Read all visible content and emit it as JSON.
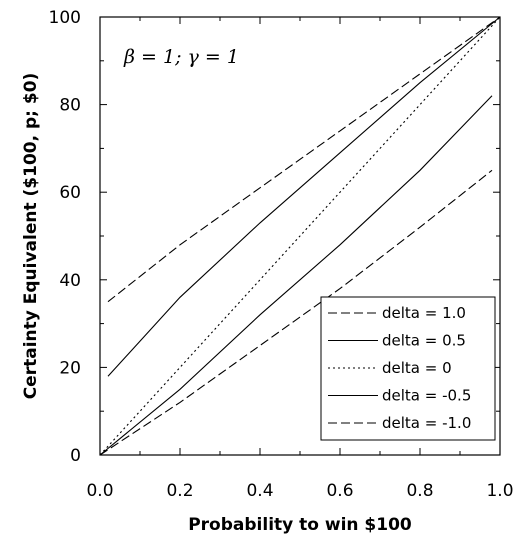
{
  "chart_data": {
    "type": "line",
    "xlabel": "Probability to win $100",
    "ylabel": "Certainty Equivalent ($100, p; $0)",
    "annotation": "β = 1; γ = 1",
    "xlim": [
      0.0,
      1.0
    ],
    "ylim": [
      0,
      100
    ],
    "x_ticks": [
      "0.0",
      "0.2",
      "0.4",
      "0.6",
      "0.8",
      "1.0"
    ],
    "y_ticks": [
      "0",
      "20",
      "40",
      "60",
      "80",
      "100"
    ],
    "grid": false,
    "legend_position": "bottom-right",
    "series": [
      {
        "name": "delta = 1.0",
        "style": "dashed",
        "x": [
          0.02,
          0.2,
          0.4,
          0.6,
          0.8,
          1.0
        ],
        "y": [
          35,
          48,
          61,
          74,
          87,
          100
        ]
      },
      {
        "name": "delta = 0.5",
        "style": "solid",
        "x": [
          0.02,
          0.2,
          0.4,
          0.6,
          0.8,
          1.0
        ],
        "y": [
          18,
          36,
          53,
          69,
          85,
          100
        ]
      },
      {
        "name": "delta = 0",
        "style": "dotted",
        "x": [
          0.0,
          0.2,
          0.4,
          0.6,
          0.8,
          1.0
        ],
        "y": [
          0,
          20,
          40,
          60,
          80,
          100
        ]
      },
      {
        "name": "delta = -0.5",
        "style": "solid",
        "x": [
          0.0,
          0.2,
          0.4,
          0.6,
          0.8,
          0.98
        ],
        "y": [
          0,
          15,
          32,
          48,
          65,
          82
        ]
      },
      {
        "name": "delta = -1.0",
        "style": "dashed",
        "x": [
          0.0,
          0.2,
          0.4,
          0.6,
          0.8,
          0.98
        ],
        "y": [
          0,
          12,
          25,
          38,
          52,
          65
        ]
      }
    ]
  }
}
